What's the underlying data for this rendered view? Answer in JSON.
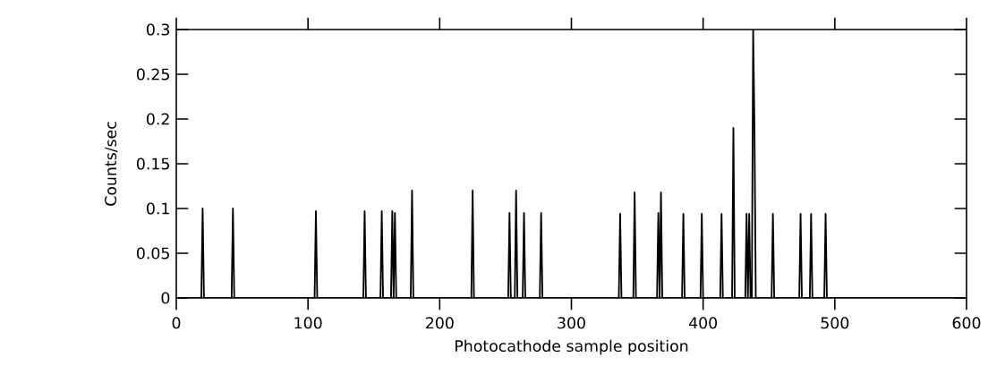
{
  "chart_data": {
    "type": "line",
    "xlabel": "Photocathode sample position",
    "ylabel": "Counts/sec",
    "x": [
      0,
      19,
      20,
      21,
      42,
      43,
      44,
      105,
      106,
      107,
      142,
      143,
      144,
      155,
      156,
      157,
      163,
      164,
      165,
      166,
      167,
      168,
      178,
      179,
      180,
      224,
      225,
      226,
      252,
      253,
      254,
      257,
      258,
      259,
      263,
      264,
      265,
      276,
      277,
      278,
      336,
      337,
      338,
      347,
      348,
      349,
      365,
      366,
      367,
      368,
      369,
      384,
      385,
      386,
      398,
      399,
      400,
      413,
      414,
      415,
      422,
      423,
      424,
      432,
      433,
      434,
      435,
      436,
      437,
      438,
      439,
      440,
      441,
      442,
      452,
      453,
      454,
      473,
      474,
      475,
      481,
      482,
      483,
      492,
      493,
      494,
      600
    ],
    "values": [
      0,
      0,
      0.1,
      0,
      0,
      0.1,
      0,
      0,
      0.097,
      0,
      0,
      0.097,
      0,
      0,
      0.097,
      0,
      0,
      0.097,
      0,
      0.095,
      0,
      0,
      0,
      0.12,
      0,
      0,
      0.12,
      0,
      0,
      0.095,
      0,
      0,
      0.12,
      0,
      0,
      0.095,
      0,
      0,
      0.095,
      0,
      0,
      0.094,
      0,
      0,
      0.118,
      0,
      0,
      0.095,
      0,
      0.118,
      0,
      0,
      0.094,
      0,
      0,
      0.094,
      0,
      0,
      0.094,
      0,
      0,
      0.19,
      0,
      0,
      0.094,
      0,
      0.094,
      0,
      0,
      0.3,
      0.19,
      0,
      0,
      0,
      0,
      0.094,
      0,
      0,
      0.094,
      0,
      0,
      0.094,
      0,
      0,
      0.094,
      0,
      0
    ],
    "color": "#000000",
    "xlim": [
      0,
      600
    ],
    "ylim": [
      0,
      0.3
    ],
    "xticks": [
      0,
      100,
      200,
      300,
      400,
      500,
      600
    ],
    "yticks": [
      0,
      0.05,
      0.1,
      0.15,
      0.2,
      0.25,
      0.3
    ],
    "grid": false,
    "marker": "none",
    "line_style": "solid"
  }
}
